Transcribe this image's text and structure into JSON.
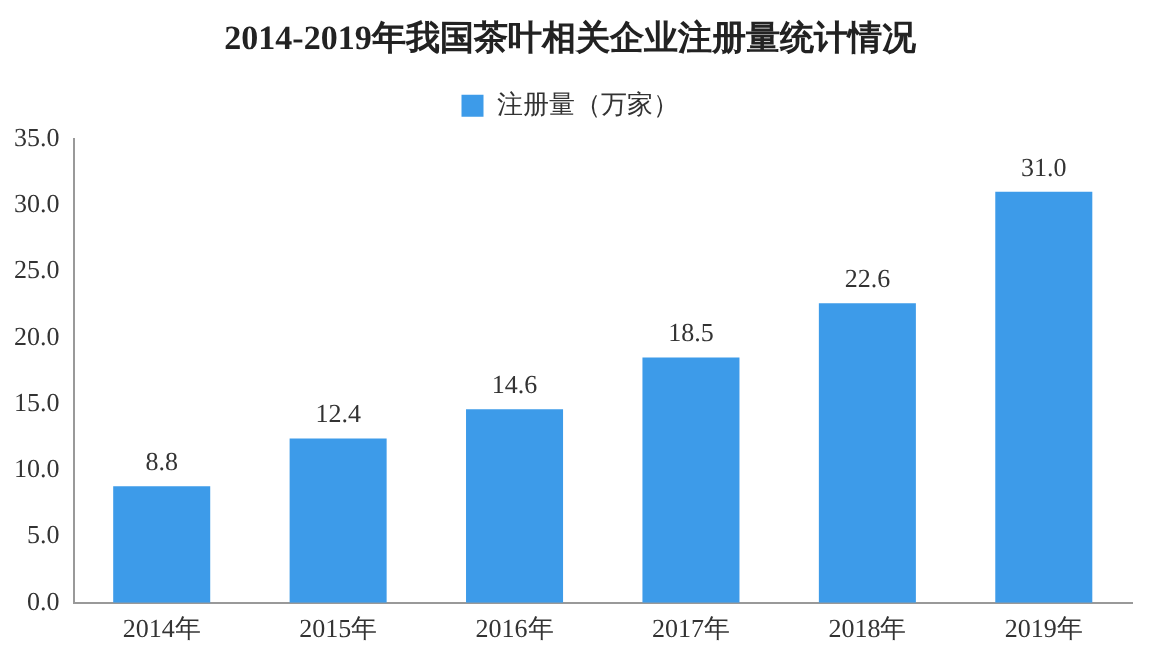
{
  "chart_data": {
    "type": "bar",
    "title": "2014-2019年我国茶叶相关企业注册量统计情况",
    "categories": [
      "2014年",
      "2015年",
      "2016年",
      "2017年",
      "2018年",
      "2019年"
    ],
    "series": [
      {
        "name": "注册量（万家）",
        "color": "#3d9be9",
        "values": [
          8.8,
          12.4,
          14.6,
          18.5,
          22.6,
          31.0
        ],
        "value_labels": [
          "8.8",
          "12.4",
          "14.6",
          "18.5",
          "22.6",
          "31.0"
        ]
      }
    ],
    "ylim": [
      0,
      35
    ],
    "yticks": [
      {
        "value": 0,
        "label": "0.0"
      },
      {
        "value": 5,
        "label": "5.0"
      },
      {
        "value": 10,
        "label": "10.0"
      },
      {
        "value": 15,
        "label": "15.0"
      },
      {
        "value": 20,
        "label": "20.0"
      },
      {
        "value": 25,
        "label": "25.0"
      },
      {
        "value": 30,
        "label": "30.0"
      },
      {
        "value": 35,
        "label": "35.0"
      }
    ],
    "grid": false,
    "legend": "top"
  }
}
